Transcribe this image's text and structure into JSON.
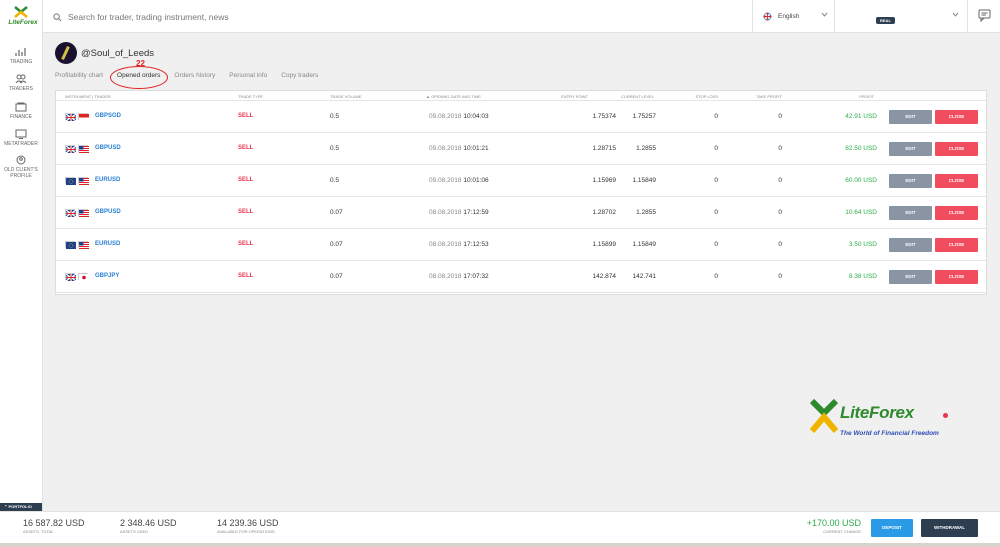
{
  "app": {
    "logo_text": "LiteForex"
  },
  "sidebar": {
    "items": [
      {
        "label": "TRADING",
        "icon": "chart-icon"
      },
      {
        "label": "TRADERS",
        "icon": "traders-icon"
      },
      {
        "label": "FINANCE",
        "icon": "finance-icon"
      },
      {
        "label": "METATRADER",
        "icon": "monitor-icon"
      },
      {
        "label": "OLD CLIENT'S PROFILE",
        "icon": "profile-icon"
      }
    ],
    "portfolio_label": "PORTFOLIO"
  },
  "topbar": {
    "search_placeholder": "Search for trader, trading instrument, news",
    "language": "English",
    "account_badge": "REAL"
  },
  "profile": {
    "username": "@Soul_of_Leeds"
  },
  "tabs": [
    {
      "label": "Profitability chart"
    },
    {
      "label": "Opened orders"
    },
    {
      "label": "Orders history"
    },
    {
      "label": "Personal info"
    },
    {
      "label": "Copy traders"
    }
  ],
  "annotation": {
    "number": "22"
  },
  "table": {
    "headers": {
      "instrument": "INSTRUMENT | TRADER",
      "trade_type": "TRADE TYPE",
      "volume": "TRADE VOLUME",
      "opening": "▲ OPENING DATE AND TIME",
      "entry": "ENTRY POINT",
      "current": "CURRENT LEVEL",
      "stop_loss": "STOP LOSS",
      "take_profit": "TAKE PROFIT",
      "profit": "PROFIT"
    },
    "edit_label": "EDIT",
    "close_label": "CLOSE",
    "rows": [
      {
        "instrument": "GBPSGD",
        "flags": [
          "gb",
          "sg"
        ],
        "type": "SELL",
        "volume": "0.5",
        "date": "09.08.2018",
        "time": "10:04:03",
        "entry": "1.75374",
        "current": "1.75257",
        "sl": "0",
        "tp": "0",
        "profit": "42.91 USD"
      },
      {
        "instrument": "GBPUSD",
        "flags": [
          "gb",
          "us"
        ],
        "type": "SELL",
        "volume": "0.5",
        "date": "09.08.2018",
        "time": "10:01:21",
        "entry": "1.28715",
        "current": "1.2855",
        "sl": "0",
        "tp": "0",
        "profit": "82.50 USD"
      },
      {
        "instrument": "EURUSD",
        "flags": [
          "eu",
          "us"
        ],
        "type": "SELL",
        "volume": "0.5",
        "date": "09.08.2018",
        "time": "10:01:06",
        "entry": "1.15969",
        "current": "1.15849",
        "sl": "0",
        "tp": "0",
        "profit": "60.00 USD"
      },
      {
        "instrument": "GBPUSD",
        "flags": [
          "gb",
          "us"
        ],
        "type": "SELL",
        "volume": "0.07",
        "date": "08.08.2018",
        "time": "17:12:59",
        "entry": "1.28702",
        "current": "1.2855",
        "sl": "0",
        "tp": "0",
        "profit": "10.64 USD"
      },
      {
        "instrument": "EURUSD",
        "flags": [
          "eu",
          "us"
        ],
        "type": "SELL",
        "volume": "0.07",
        "date": "08.08.2018",
        "time": "17:12:53",
        "entry": "1.15899",
        "current": "1.15849",
        "sl": "0",
        "tp": "0",
        "profit": "3.50 USD"
      },
      {
        "instrument": "GBPJPY",
        "flags": [
          "gb",
          "jp"
        ],
        "type": "SELL",
        "volume": "0.07",
        "date": "08.08.2018",
        "time": "17:07:32",
        "entry": "142.874",
        "current": "142.741",
        "sl": "0",
        "tp": "0",
        "profit": "8.38 USD"
      }
    ]
  },
  "brand": {
    "name": "LiteForex",
    "tagline": "The World of Financial Freedom"
  },
  "footer": {
    "assets_total": {
      "value": "16 587.82 USD",
      "label": "ASSETS, TOTAL"
    },
    "assets_used": {
      "value": "2 348.46 USD",
      "label": "ASSETS USED"
    },
    "available": {
      "value": "14 239.36 USD",
      "label": "AVAILABLE FOR OPERATIONS"
    },
    "change": {
      "value": "+170.00 USD",
      "label": "CURRENT CHANGE"
    },
    "deposit_label": "DEPOSIT",
    "withdrawal_label": "WITHDRAWAL"
  },
  "colors": {
    "accent_blue": "#2b7fd4",
    "sell_red": "#e8354b",
    "profit_green": "#2dab4b",
    "brand_green": "#2d8a2d",
    "dark": "#2c3e50"
  }
}
